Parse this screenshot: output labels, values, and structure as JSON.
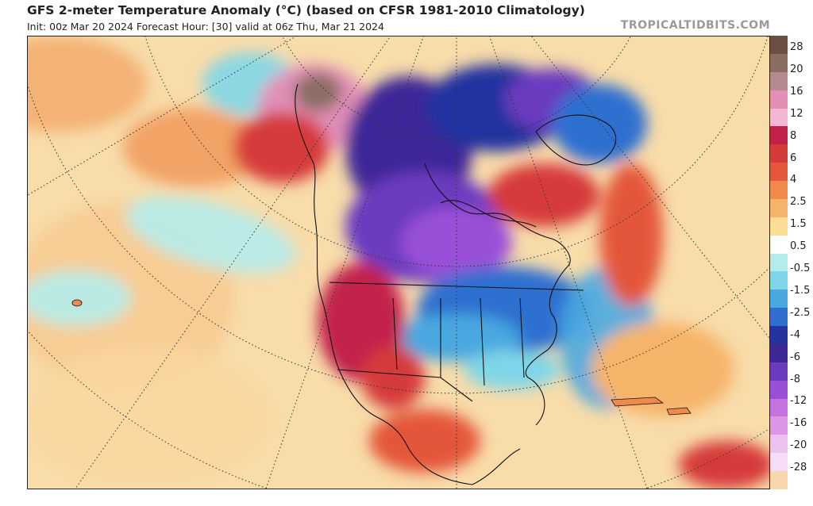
{
  "header": {
    "title": "GFS 2-meter Temperature Anomaly (°C) (based on CFSR 1981-2010 Climatology)",
    "subtitle": "Init: 00z Mar 20 2024   Forecast Hour: [30]   valid at 06z Thu, Mar 21 2024",
    "brand": "TROPICALTIDBITS.COM"
  },
  "legend": {
    "labels": [
      "28",
      "20",
      "16",
      "12",
      "8",
      "6",
      "4",
      "2.5",
      "1.5",
      "0.5",
      "-0.5",
      "-1.5",
      "-2.5",
      "-4",
      "-6",
      "-8",
      "-12",
      "-16",
      "-20",
      "-28"
    ],
    "colors": [
      "#6b4f45",
      "#8c6d63",
      "#b48a90",
      "#e28fb8",
      "#f3b6d3",
      "#c2214b",
      "#d63b3b",
      "#e4573b",
      "#ef8a4a",
      "#f6b46a",
      "#fbdd96",
      "#ffffff",
      "#b4ecec",
      "#7fd6e8",
      "#4aa8e0",
      "#2f6fd0",
      "#2433a0",
      "#3e2898",
      "#6b3bbf",
      "#9a4fd8",
      "#c472e2",
      "#dd96e6",
      "#ecc0ef",
      "#f6dcf6",
      "#f7d6b0"
    ]
  }
}
